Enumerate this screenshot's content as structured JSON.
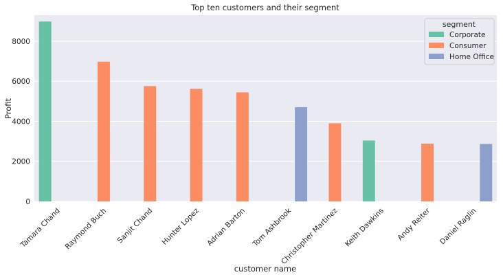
{
  "chart_data": {
    "type": "bar",
    "title": "Top ten customers and their segment",
    "xlabel": "customer name",
    "ylabel": "Profit",
    "ylim": [
      0,
      9300
    ],
    "yticks": [
      0,
      2000,
      4000,
      6000,
      8000
    ],
    "grid": true,
    "legend_title": "segment",
    "legend_position": "top-right",
    "categories": [
      "Tamara Chand",
      "Raymond Buch",
      "Sanjit Chand",
      "Hunter Lopez",
      "Adrian Barton",
      "Tom Ashbrook",
      "Christopher Martinez",
      "Keith Dawkins",
      "Andy Reiter",
      "Daniel Raglin"
    ],
    "series": [
      {
        "name": "Corporate",
        "color": "#66c2a5",
        "values": [
          8981,
          null,
          null,
          null,
          null,
          null,
          null,
          3039,
          null,
          null
        ]
      },
      {
        "name": "Consumer",
        "color": "#fc8d62",
        "values": [
          null,
          6976,
          5757,
          5622,
          5444,
          null,
          3900,
          null,
          2884,
          null
        ]
      },
      {
        "name": "Home Office",
        "color": "#8da0cb",
        "values": [
          null,
          null,
          null,
          null,
          null,
          4704,
          null,
          null,
          null,
          2869
        ]
      }
    ]
  },
  "colors": {
    "plot_background": "#eaeaf2",
    "grid": "#ffffff"
  }
}
